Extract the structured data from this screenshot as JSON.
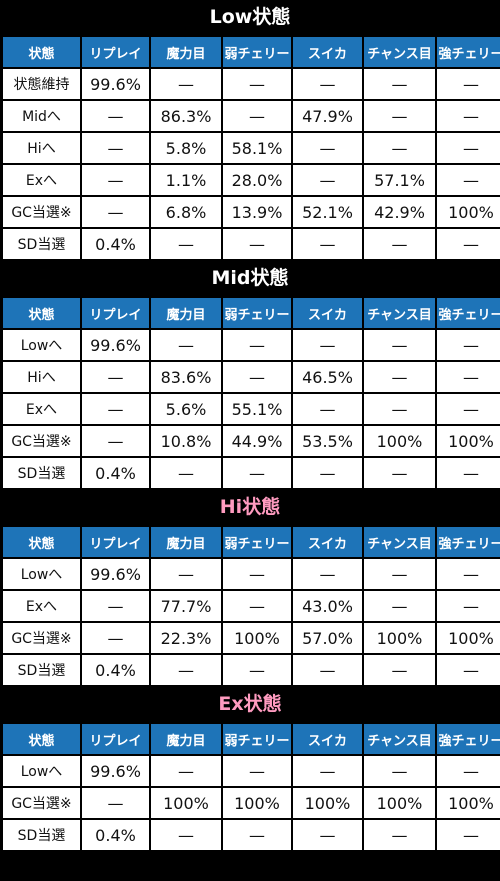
{
  "columns": [
    "状態",
    "リプレイ",
    "魔力目",
    "弱チェリー",
    "スイカ",
    "チャンス目",
    "強チェリー"
  ],
  "sections": [
    {
      "title": "Low状態",
      "title_color": "#ffffff",
      "rows": [
        {
          "label": "状態維持",
          "values": [
            "99.6%",
            "—",
            "—",
            "—",
            "—",
            "—"
          ]
        },
        {
          "label": "Midへ",
          "values": [
            "—",
            "86.3%",
            "—",
            "47.9%",
            "—",
            "—"
          ]
        },
        {
          "label": "Hiへ",
          "values": [
            "—",
            "5.8%",
            "58.1%",
            "—",
            "—",
            "—"
          ]
        },
        {
          "label": "Exへ",
          "values": [
            "—",
            "1.1%",
            "28.0%",
            "—",
            "57.1%",
            "—"
          ]
        },
        {
          "label": "GC当選※",
          "values": [
            "—",
            "6.8%",
            "13.9%",
            "52.1%",
            "42.9%",
            "100%"
          ]
        },
        {
          "label": "SD当選",
          "values": [
            "0.4%",
            "—",
            "—",
            "—",
            "—",
            "—"
          ]
        }
      ]
    },
    {
      "title": "Mid状態",
      "title_color": "#ffffff",
      "rows": [
        {
          "label": "Lowへ",
          "values": [
            "99.6%",
            "—",
            "—",
            "—",
            "—",
            "—"
          ]
        },
        {
          "label": "Hiへ",
          "values": [
            "—",
            "83.6%",
            "—",
            "46.5%",
            "—",
            "—"
          ]
        },
        {
          "label": "Exへ",
          "values": [
            "—",
            "5.6%",
            "55.1%",
            "—",
            "—",
            "—"
          ]
        },
        {
          "label": "GC当選※",
          "values": [
            "—",
            "10.8%",
            "44.9%",
            "53.5%",
            "100%",
            "100%"
          ]
        },
        {
          "label": "SD当選",
          "values": [
            "0.4%",
            "—",
            "—",
            "—",
            "—",
            "—"
          ]
        }
      ]
    },
    {
      "title": "Hi状態",
      "title_color": "#ff9bc0",
      "rows": [
        {
          "label": "Lowへ",
          "values": [
            "99.6%",
            "—",
            "—",
            "—",
            "—",
            "—"
          ]
        },
        {
          "label": "Exへ",
          "values": [
            "—",
            "77.7%",
            "—",
            "43.0%",
            "—",
            "—"
          ]
        },
        {
          "label": "GC当選※",
          "values": [
            "—",
            "22.3%",
            "100%",
            "57.0%",
            "100%",
            "100%"
          ]
        },
        {
          "label": "SD当選",
          "values": [
            "0.4%",
            "—",
            "—",
            "—",
            "—",
            "—"
          ]
        }
      ]
    },
    {
      "title": "Ex状態",
      "title_color": "#ff9bc0",
      "rows": [
        {
          "label": "Lowへ",
          "values": [
            "99.6%",
            "—",
            "—",
            "—",
            "—",
            "—"
          ]
        },
        {
          "label": "GC当選※",
          "values": [
            "—",
            "100%",
            "100%",
            "100%",
            "100%",
            "100%"
          ]
        },
        {
          "label": "SD当選",
          "values": [
            "0.4%",
            "—",
            "—",
            "—",
            "—",
            "—"
          ]
        }
      ]
    }
  ],
  "colors": {
    "header_bg": "#1e74b8",
    "page_bg": "#000000",
    "cell_bg": "#ffffff"
  }
}
